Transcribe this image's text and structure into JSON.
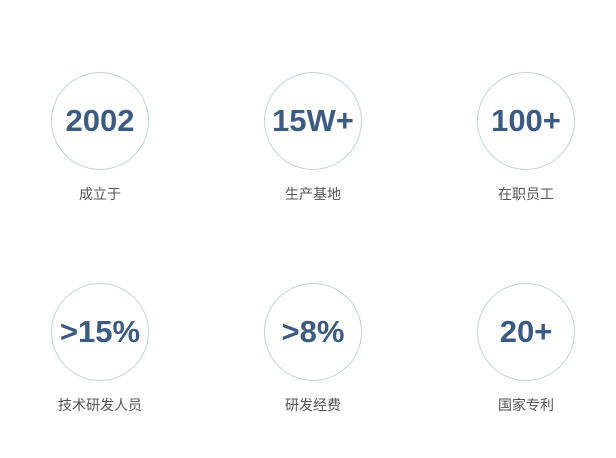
{
  "stats": [
    {
      "value": "2002",
      "label": "成立于"
    },
    {
      "value": "15W+",
      "label": "生产基地"
    },
    {
      "value": "100+",
      "label": "在职员工"
    },
    {
      "value": ">15%",
      "label": "技术研发人员"
    },
    {
      "value": ">8%",
      "label": "研发经费"
    },
    {
      "value": "20+",
      "label": "国家专利"
    }
  ],
  "colors": {
    "number": "#3d5a80",
    "circle_border": "#c8d0da",
    "label": "#555555"
  }
}
